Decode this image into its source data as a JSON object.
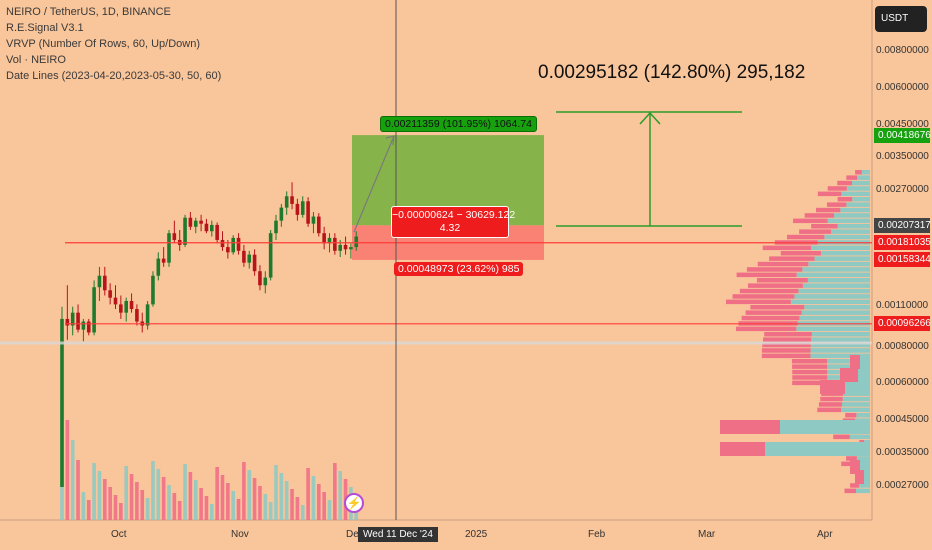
{
  "legend": {
    "title": "NEIRO / TetherUS, 1D, BINANCE",
    "lines": [
      "R.E.Signal V3.1",
      "VRVP (Number Of Rows, 60, Up/Down)",
      "Vol · NEIRO",
      "Date Lines (2023-04-20,2023-05-30, 50, 60)"
    ]
  },
  "currency_button": "USDT",
  "cursor_date": "Wed 11 Dec '24",
  "annotations": {
    "target_big": "0.00295182 (142.80%) 295,182",
    "target_box": "0.00211359 (101.95%) 1064.74",
    "position_line1": "−0.00000624 − 30629.122",
    "position_line2": "4.32",
    "stop_box": "0.00048973 (23.62%) 985"
  },
  "price_scale": [
    "0.00800000",
    "0.00600000",
    "0.00450000",
    "0.00350000",
    "0.00270000",
    "0.00110000",
    "0.00080000",
    "0.00060000",
    "0.00045000",
    "0.00035000",
    "0.00027000"
  ],
  "price_badges": [
    {
      "text": "0.00418676",
      "color": "#17a10f"
    },
    {
      "text": "0.00207317",
      "color": "#444444"
    },
    {
      "text": "0.00181035",
      "color": "#ee1c1c"
    },
    {
      "text": "0.00158344",
      "color": "#ee1c1c"
    },
    {
      "text": "0.00096266",
      "color": "#ee1c1c"
    }
  ],
  "time_axis": [
    "Oct",
    "Nov",
    "Dec",
    "2025",
    "Feb",
    "Mar",
    "Apr"
  ],
  "colors": {
    "background": "#f9c59a",
    "up": "#1f7a2e",
    "down": "#b8141b",
    "target": "#7ab043",
    "stop": "#f97a70",
    "vp_up": "#8ec9c3",
    "vp_down": "#ef6f86"
  },
  "chart_data": {
    "type": "candlestick",
    "symbol": "NEIRO / TetherUS",
    "interval": "1D",
    "exchange": "BINANCE",
    "y_scale": "log",
    "candles": [
      [
        0.00027,
        0.0011,
        0.00027,
        0.001
      ],
      [
        0.001,
        0.0013,
        0.00085,
        0.00095
      ],
      [
        0.00095,
        0.0011,
        0.00088,
        0.00105
      ],
      [
        0.00105,
        0.00112,
        0.0009,
        0.00092
      ],
      [
        0.00092,
        0.001,
        0.00084,
        0.00098
      ],
      [
        0.00098,
        0.001,
        0.00088,
        0.0009
      ],
      [
        0.0009,
        0.00135,
        0.00088,
        0.00128
      ],
      [
        0.00128,
        0.0015,
        0.00115,
        0.0014
      ],
      [
        0.0014,
        0.0015,
        0.0012,
        0.00125
      ],
      [
        0.00125,
        0.00132,
        0.00112,
        0.00118
      ],
      [
        0.00118,
        0.0013,
        0.00108,
        0.00112
      ],
      [
        0.00112,
        0.0012,
        0.001,
        0.00105
      ],
      [
        0.00105,
        0.00118,
        0.00098,
        0.00115
      ],
      [
        0.00115,
        0.00122,
        0.00105,
        0.00108
      ],
      [
        0.00108,
        0.00112,
        0.00095,
        0.00098
      ],
      [
        0.00098,
        0.00105,
        0.0009,
        0.00095
      ],
      [
        0.00095,
        0.00115,
        0.00092,
        0.00112
      ],
      [
        0.00112,
        0.00145,
        0.0011,
        0.0014
      ],
      [
        0.0014,
        0.00168,
        0.00135,
        0.0016
      ],
      [
        0.0016,
        0.00175,
        0.0015,
        0.00155
      ],
      [
        0.00155,
        0.002,
        0.0015,
        0.00195
      ],
      [
        0.00195,
        0.00215,
        0.0018,
        0.00185
      ],
      [
        0.00185,
        0.002,
        0.0017,
        0.00178
      ],
      [
        0.00178,
        0.00225,
        0.00175,
        0.0022
      ],
      [
        0.0022,
        0.0023,
        0.002,
        0.00205
      ],
      [
        0.00205,
        0.0022,
        0.00195,
        0.00215
      ],
      [
        0.00215,
        0.00225,
        0.00198,
        0.0021
      ],
      [
        0.0021,
        0.00218,
        0.00195,
        0.00198
      ],
      [
        0.00198,
        0.00215,
        0.0019,
        0.00208
      ],
      [
        0.00208,
        0.00212,
        0.0018,
        0.00185
      ],
      [
        0.00185,
        0.00198,
        0.0017,
        0.00175
      ],
      [
        0.00175,
        0.00185,
        0.0016,
        0.00168
      ],
      [
        0.00168,
        0.00192,
        0.00165,
        0.00188
      ],
      [
        0.00188,
        0.00195,
        0.00165,
        0.0017
      ],
      [
        0.0017,
        0.00178,
        0.0015,
        0.00155
      ],
      [
        0.00155,
        0.0017,
        0.00148,
        0.00165
      ],
      [
        0.00165,
        0.00172,
        0.0014,
        0.00145
      ],
      [
        0.00145,
        0.00152,
        0.00125,
        0.0013
      ],
      [
        0.0013,
        0.00145,
        0.00122,
        0.00138
      ],
      [
        0.00138,
        0.002,
        0.00135,
        0.00195
      ],
      [
        0.00195,
        0.00225,
        0.00185,
        0.00215
      ],
      [
        0.00215,
        0.00245,
        0.00205,
        0.00238
      ],
      [
        0.00238,
        0.0027,
        0.00225,
        0.0026
      ],
      [
        0.0026,
        0.0029,
        0.00235,
        0.00245
      ],
      [
        0.00245,
        0.00255,
        0.00215,
        0.00225
      ],
      [
        0.00225,
        0.0026,
        0.0022,
        0.0025
      ],
      [
        0.0025,
        0.00258,
        0.00205,
        0.0021
      ],
      [
        0.0021,
        0.0023,
        0.00195,
        0.00222
      ],
      [
        0.00222,
        0.00228,
        0.0019,
        0.00195
      ],
      [
        0.00195,
        0.00205,
        0.00172,
        0.0018
      ],
      [
        0.0018,
        0.00195,
        0.00168,
        0.00188
      ],
      [
        0.00188,
        0.00195,
        0.00165,
        0.0017
      ],
      [
        0.0017,
        0.00185,
        0.00162,
        0.00178
      ],
      [
        0.00178,
        0.0019,
        0.00165,
        0.00172
      ],
      [
        0.00172,
        0.0018,
        0.0016,
        0.00175
      ],
      [
        0.00175,
        0.00198,
        0.0017,
        0.0019
      ]
    ],
    "horizontal_lines": [
      0.00181035,
      0.00096266
    ],
    "target_zone": {
      "from": 0.00207317,
      "to": 0.00418676
    },
    "stop_zone": {
      "from": 0.00158344,
      "to": 0.00207317
    }
  }
}
